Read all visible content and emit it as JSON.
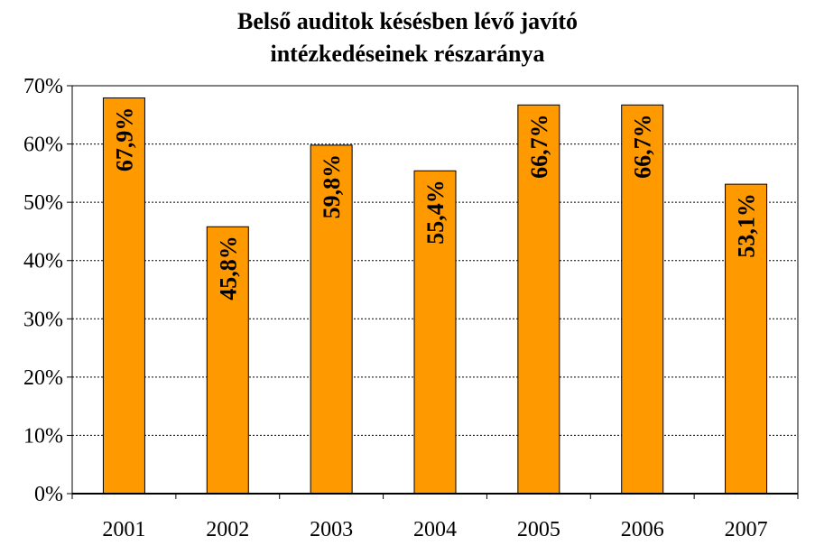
{
  "chart_data": {
    "type": "bar",
    "title_lines": [
      "Belső auditok késésben lévő javító",
      "intézkedéseinek részaránya"
    ],
    "xlabel": "",
    "ylabel": "",
    "categories": [
      "2001",
      "2002",
      "2003",
      "2004",
      "2005",
      "2006",
      "2007"
    ],
    "values": [
      67.9,
      45.8,
      59.8,
      55.4,
      66.7,
      66.7,
      53.1
    ],
    "data_labels": [
      "67,9%",
      "45,8%",
      "59,8%",
      "55,4%",
      "66,7%",
      "66,7%",
      "53,1%"
    ],
    "y_ticks": [
      "0%",
      "10%",
      "20%",
      "30%",
      "40%",
      "50%",
      "60%",
      "70%"
    ],
    "ylim": [
      0,
      70
    ],
    "grid": true,
    "legend": "none",
    "bar_color": "#FF9900",
    "bar_outline_color": "#000000",
    "gridline_color": "#000000"
  }
}
